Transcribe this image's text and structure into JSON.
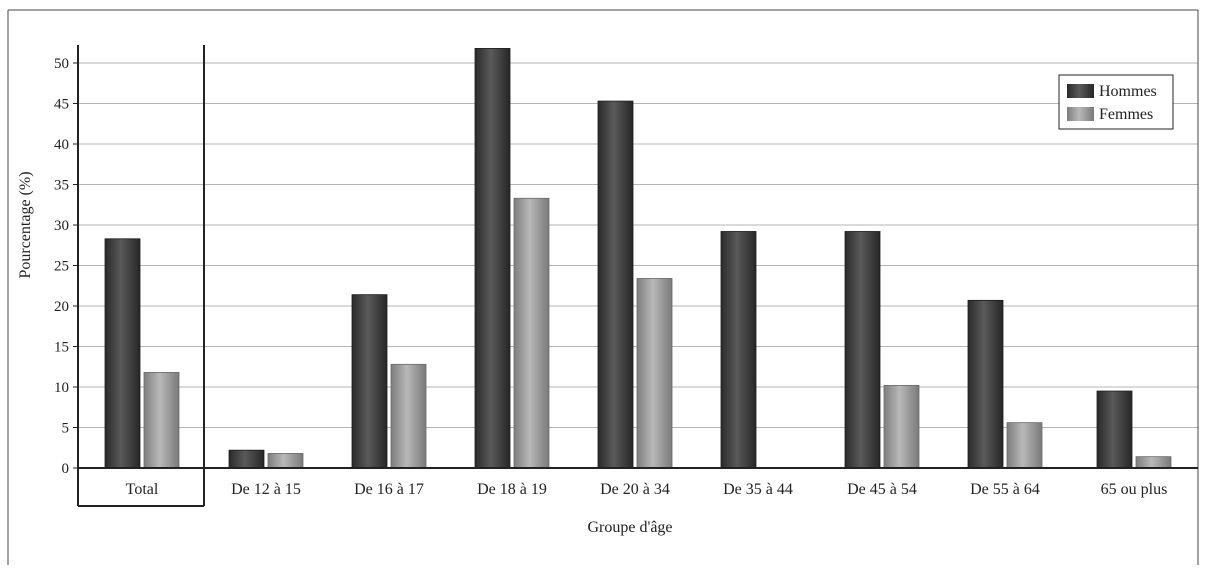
{
  "chart_data": {
    "type": "bar",
    "title": "",
    "xlabel": "Groupe d'âge",
    "ylabel": "Pourcentage (%)",
    "ylim": [
      0,
      52
    ],
    "yticks": [
      0,
      5,
      10,
      15,
      20,
      25,
      30,
      35,
      40,
      45,
      50
    ],
    "grid": true,
    "legend_position": "top-right",
    "categories": [
      "Total",
      "De 12 à 15",
      "De 16 à 17",
      "De 18 à 19",
      "De 20 à 34",
      "De 35 à 44",
      "De 45 à 54",
      "De 55 à 64",
      "65 ou plus"
    ],
    "series": [
      {
        "name": "Hommes",
        "color": "#3d3d3d",
        "values": [
          28.3,
          2.2,
          21.4,
          51.8,
          45.3,
          29.2,
          29.2,
          20.7,
          9.5
        ]
      },
      {
        "name": "Femmes",
        "color": "#9a9a9a",
        "values": [
          11.8,
          1.8,
          12.8,
          33.3,
          23.4,
          0,
          10.2,
          5.6,
          1.4
        ]
      }
    ]
  }
}
